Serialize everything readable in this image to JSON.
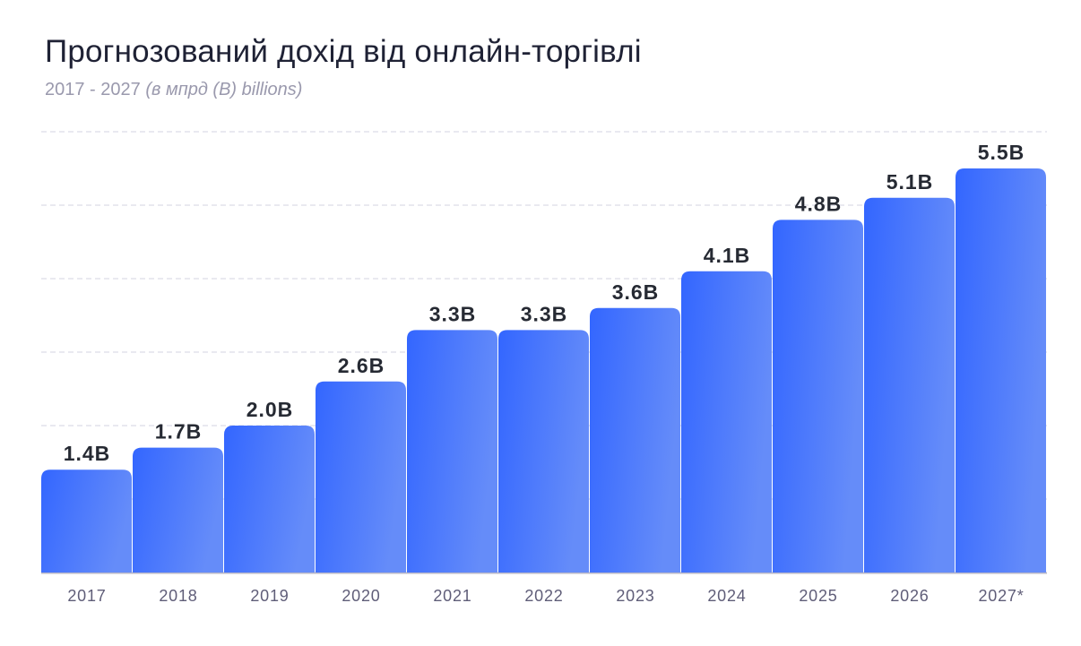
{
  "chart_data": {
    "type": "bar",
    "title": "Прогнозований дохід від онлайн-торгівлі",
    "subtitle_range": "2017 - 2027",
    "subtitle_unit": "(в мпрд (B) billions)",
    "categories": [
      "2017",
      "2018",
      "2019",
      "2020",
      "2021",
      "2022",
      "2023",
      "2024",
      "2025",
      "2026",
      "2027*"
    ],
    "values": [
      1.4,
      1.7,
      2.0,
      2.6,
      3.3,
      3.3,
      3.6,
      4.1,
      4.8,
      5.1,
      5.5
    ],
    "data_labels": [
      "1.4B",
      "1.7B",
      "2.0B",
      "2.6B",
      "3.3B",
      "3.3B",
      "3.6B",
      "4.1B",
      "4.8B",
      "5.1B",
      "5.5B"
    ],
    "ylim": [
      0,
      6
    ],
    "grid": true,
    "colors": {
      "bar_start": "#3366ff",
      "bar_end": "#658cf9",
      "label": "#262a33",
      "tick": "#5f5d78",
      "grid": "#dcdce6"
    }
  }
}
